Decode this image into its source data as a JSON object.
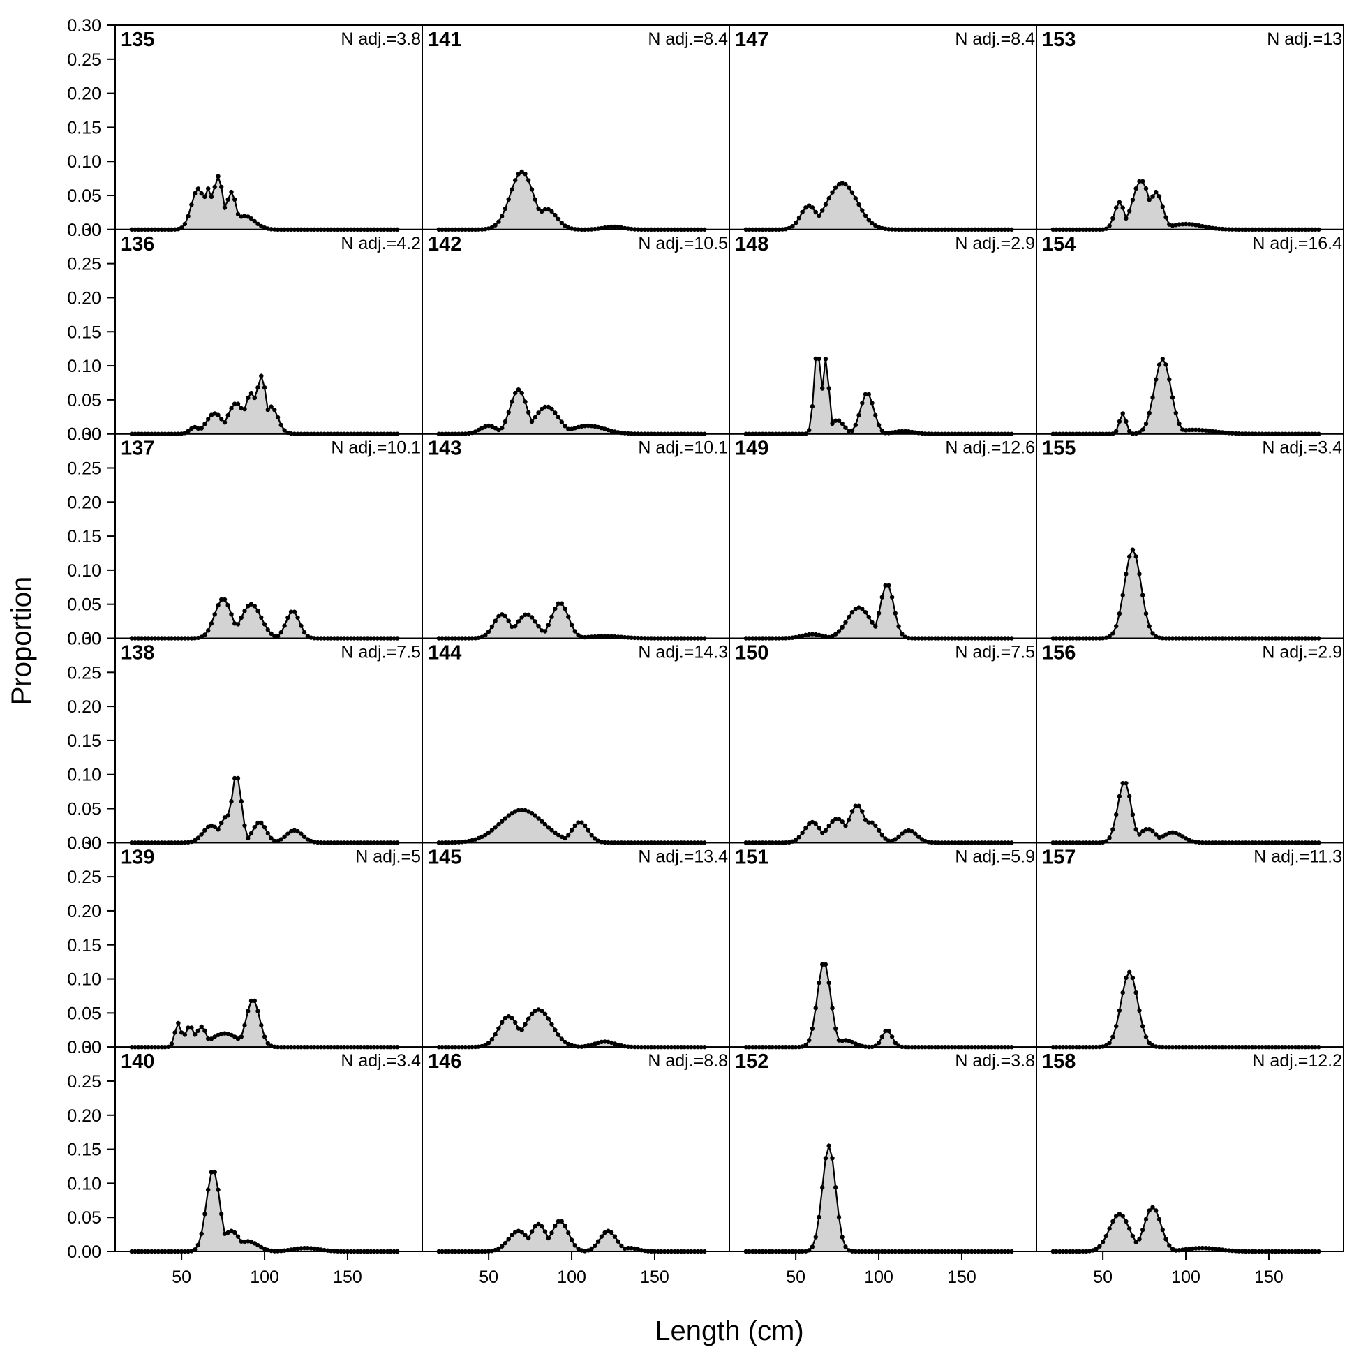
{
  "chart_data": {
    "type": "area",
    "xlabel": "Length (cm)",
    "ylabel": "Proportion",
    "xlim": [
      10,
      195
    ],
    "ylim": [
      0,
      0.3
    ],
    "x_ticks": [
      50,
      100,
      150
    ],
    "y_ticks": [
      "0.00",
      "0.05",
      "0.10",
      "0.15",
      "0.20",
      "0.25",
      "0.30"
    ],
    "fill_color": "#d3d3d3",
    "line_color": "#000000",
    "grid": false,
    "layout": {
      "columns": 4,
      "rows": 6,
      "order": "column-major"
    },
    "panels": [
      {
        "id": "135",
        "n_adj": "N adj.=3.8",
        "peaks": [
          [
            60,
            0.06,
            4
          ],
          [
            66,
            0.06,
            3
          ],
          [
            72,
            0.078,
            3
          ],
          [
            80,
            0.055,
            3
          ],
          [
            88,
            0.02,
            6
          ]
        ]
      },
      {
        "id": "136",
        "n_adj": "N adj.=4.2",
        "peaks": [
          [
            58,
            0.01,
            3
          ],
          [
            70,
            0.03,
            5
          ],
          [
            83,
            0.045,
            5
          ],
          [
            92,
            0.06,
            4
          ],
          [
            98,
            0.085,
            3
          ],
          [
            104,
            0.04,
            4
          ]
        ]
      },
      {
        "id": "137",
        "n_adj": "N adj.=10.1",
        "peaks": [
          [
            75,
            0.058,
            5
          ],
          [
            92,
            0.05,
            6
          ],
          [
            117,
            0.04,
            4
          ]
        ]
      },
      {
        "id": "138",
        "n_adj": "N adj.=7.5",
        "peaks": [
          [
            68,
            0.025,
            5
          ],
          [
            83,
            0.1,
            3
          ],
          [
            78,
            0.04,
            5
          ],
          [
            97,
            0.03,
            4
          ],
          [
            118,
            0.018,
            5
          ]
        ]
      },
      {
        "id": "139",
        "n_adj": "N adj.=5",
        "peaks": [
          [
            48,
            0.035,
            2
          ],
          [
            55,
            0.03,
            3
          ],
          [
            62,
            0.03,
            3
          ],
          [
            76,
            0.02,
            8
          ],
          [
            93,
            0.07,
            4
          ]
        ]
      },
      {
        "id": "140",
        "n_adj": "N adj.=3.4",
        "peaks": [
          [
            69,
            0.12,
            4
          ],
          [
            80,
            0.03,
            5
          ],
          [
            90,
            0.015,
            6
          ],
          [
            125,
            0.005,
            8
          ]
        ]
      },
      {
        "id": "141",
        "n_adj": "N adj.=8.4",
        "peaks": [
          [
            70,
            0.085,
            7
          ],
          [
            85,
            0.03,
            6
          ],
          [
            125,
            0.004,
            6
          ]
        ]
      },
      {
        "id": "142",
        "n_adj": "N adj.=10.5",
        "peaks": [
          [
            50,
            0.012,
            5
          ],
          [
            68,
            0.065,
            5
          ],
          [
            85,
            0.04,
            7
          ],
          [
            110,
            0.012,
            10
          ]
        ]
      },
      {
        "id": "143",
        "n_adj": "N adj.=10.1",
        "peaks": [
          [
            58,
            0.035,
            5
          ],
          [
            73,
            0.035,
            6
          ],
          [
            93,
            0.052,
            5
          ],
          [
            120,
            0.003,
            10
          ]
        ]
      },
      {
        "id": "144",
        "n_adj": "N adj.=14.3",
        "peaks": [
          [
            70,
            0.048,
            13
          ],
          [
            105,
            0.03,
            5
          ]
        ]
      },
      {
        "id": "145",
        "n_adj": "N adj.=13.4",
        "peaks": [
          [
            62,
            0.045,
            6
          ],
          [
            80,
            0.055,
            8
          ],
          [
            120,
            0.008,
            6
          ]
        ]
      },
      {
        "id": "146",
        "n_adj": "N adj.=8.8",
        "peaks": [
          [
            68,
            0.03,
            6
          ],
          [
            80,
            0.04,
            5
          ],
          [
            93,
            0.045,
            5
          ],
          [
            122,
            0.03,
            5
          ],
          [
            135,
            0.005,
            5
          ]
        ]
      },
      {
        "id": "147",
        "n_adj": "N adj.=8.4",
        "peaks": [
          [
            58,
            0.035,
            5
          ],
          [
            78,
            0.068,
            9
          ]
        ]
      },
      {
        "id": "148",
        "n_adj": "N adj.=2.9",
        "peaks": [
          [
            63,
            0.125,
            2
          ],
          [
            68,
            0.11,
            2
          ],
          [
            75,
            0.02,
            4
          ],
          [
            93,
            0.06,
            4
          ],
          [
            115,
            0.004,
            6
          ]
        ]
      },
      {
        "id": "149",
        "n_adj": "N adj.=12.6",
        "peaks": [
          [
            60,
            0.006,
            6
          ],
          [
            88,
            0.045,
            7
          ],
          [
            105,
            0.08,
            4
          ]
        ]
      },
      {
        "id": "150",
        "n_adj": "N adj.=7.5",
        "peaks": [
          [
            60,
            0.03,
            5
          ],
          [
            75,
            0.035,
            6
          ],
          [
            87,
            0.055,
            5
          ],
          [
            95,
            0.03,
            5
          ],
          [
            118,
            0.018,
            5
          ]
        ]
      },
      {
        "id": "151",
        "n_adj": "N adj.=5.9",
        "peaks": [
          [
            67,
            0.125,
            4
          ],
          [
            80,
            0.01,
            5
          ],
          [
            105,
            0.025,
            3
          ]
        ]
      },
      {
        "id": "152",
        "n_adj": "N adj.=3.8",
        "peaks": [
          [
            70,
            0.155,
            4
          ]
        ]
      },
      {
        "id": "153",
        "n_adj": "N adj.=13",
        "peaks": [
          [
            60,
            0.04,
            3
          ],
          [
            73,
            0.072,
            5
          ],
          [
            82,
            0.055,
            4
          ],
          [
            100,
            0.008,
            10
          ]
        ]
      },
      {
        "id": "154",
        "n_adj": "N adj.=16.4",
        "peaks": [
          [
            62,
            0.03,
            2
          ],
          [
            86,
            0.11,
            5
          ],
          [
            105,
            0.006,
            12
          ]
        ]
      },
      {
        "id": "155",
        "n_adj": "N adj.=3.4",
        "peaks": [
          [
            68,
            0.13,
            5
          ]
        ]
      },
      {
        "id": "156",
        "n_adj": "N adj.=2.9",
        "peaks": [
          [
            63,
            0.09,
            4
          ],
          [
            77,
            0.02,
            5
          ],
          [
            92,
            0.015,
            6
          ]
        ]
      },
      {
        "id": "157",
        "n_adj": "N adj.=11.3",
        "peaks": [
          [
            66,
            0.11,
            5
          ]
        ]
      },
      {
        "id": "158",
        "n_adj": "N adj.=12.2",
        "peaks": [
          [
            60,
            0.055,
            6
          ],
          [
            80,
            0.065,
            5
          ],
          [
            110,
            0.005,
            10
          ]
        ]
      }
    ]
  }
}
